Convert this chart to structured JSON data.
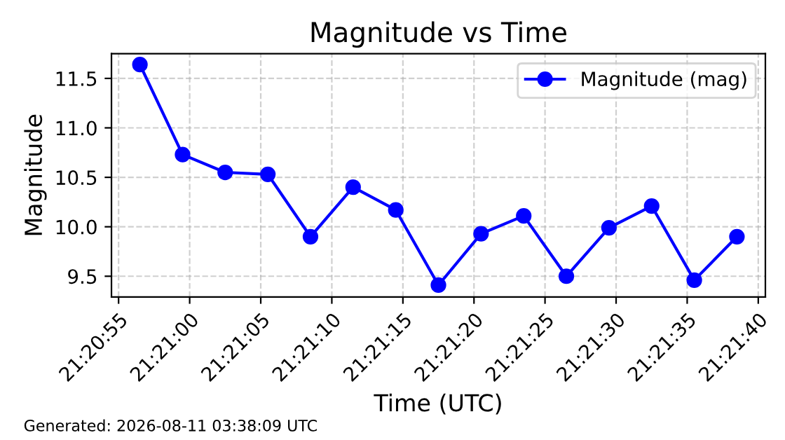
{
  "chart_data": {
    "type": "line",
    "title": "Magnitude vs Time",
    "xlabel": "Time (UTC)",
    "ylabel": "Magnitude",
    "x": [
      21.349028,
      21.349861,
      21.350694,
      21.351528,
      21.352361,
      21.353194,
      21.354028,
      21.354861,
      21.355694,
      21.356528,
      21.357361,
      21.358194,
      21.359028,
      21.359861,
      21.360694
    ],
    "series": [
      {
        "name": "Magnitude (mag)",
        "color": "#0000ff",
        "values": [
          11.64,
          10.73,
          10.55,
          10.53,
          9.9,
          10.4,
          10.17,
          9.41,
          9.93,
          10.11,
          9.5,
          9.99,
          10.21,
          9.46,
          9.9
        ]
      }
    ],
    "xlim": [
      21.348472,
      21.36125
    ],
    "xticks": [
      {
        "value": 21.348611,
        "label": "21:20:55"
      },
      {
        "value": 21.35,
        "label": "21:21:00"
      },
      {
        "value": 21.351389,
        "label": "21:21:05"
      },
      {
        "value": 21.352778,
        "label": "21:21:10"
      },
      {
        "value": 21.354167,
        "label": "21:21:15"
      },
      {
        "value": 21.355556,
        "label": "21:21:20"
      },
      {
        "value": 21.356944,
        "label": "21:21:25"
      },
      {
        "value": 21.358333,
        "label": "21:21:30"
      },
      {
        "value": 21.359722,
        "label": "21:21:35"
      },
      {
        "value": 21.361111,
        "label": "21:21:40"
      }
    ],
    "ylim": [
      9.29,
      11.75
    ],
    "yticks": [
      9.5,
      {
        "value": 10,
        "label": "10.0"
      },
      10.5,
      {
        "value": 11,
        "label": "11.0"
      },
      11.5
    ],
    "grid": true,
    "legend": "top right",
    "marker": "circle",
    "line_style": "solid",
    "annotations": [
      "Generated: 2026-08-11 03:38:09 UTC"
    ]
  }
}
